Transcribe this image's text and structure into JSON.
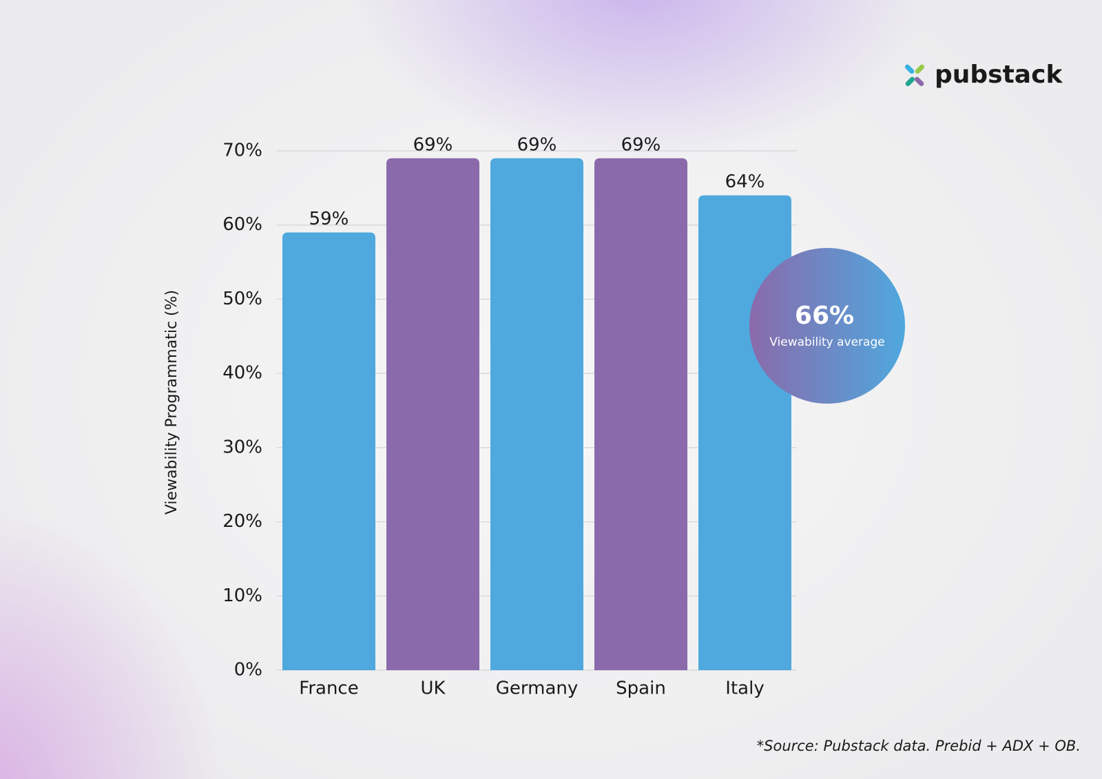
{
  "chart_data": {
    "type": "bar",
    "brand": "pubstack",
    "y_label": "Viewability Programmatic (%)",
    "categories": [
      "France",
      "UK",
      "Germany",
      "Spain",
      "Italy"
    ],
    "values": [
      59,
      69,
      69,
      69,
      64
    ],
    "value_labels": [
      "59%",
      "69%",
      "69%",
      "69%",
      "64%"
    ],
    "colors": [
      "#4fa8de",
      "#8a6aab",
      "#4fa8de",
      "#8a6aab",
      "#4fa8de"
    ],
    "ylim": [
      0,
      70
    ],
    "yticks": [
      {
        "value": 0,
        "label": "0%"
      },
      {
        "value": 10,
        "label": "10%"
      },
      {
        "value": 20,
        "label": "20%"
      },
      {
        "value": 30,
        "label": "30%"
      },
      {
        "value": 40,
        "label": "40%"
      },
      {
        "value": 50,
        "label": "50%"
      },
      {
        "value": 60,
        "label": "60%"
      },
      {
        "value": 70,
        "label": "70%"
      }
    ],
    "grid": true,
    "average": {
      "value": 66,
      "label": "66%",
      "text": "Viewability average"
    },
    "source": "*Source: Pubstack data. Prebid + ADX + OB."
  }
}
